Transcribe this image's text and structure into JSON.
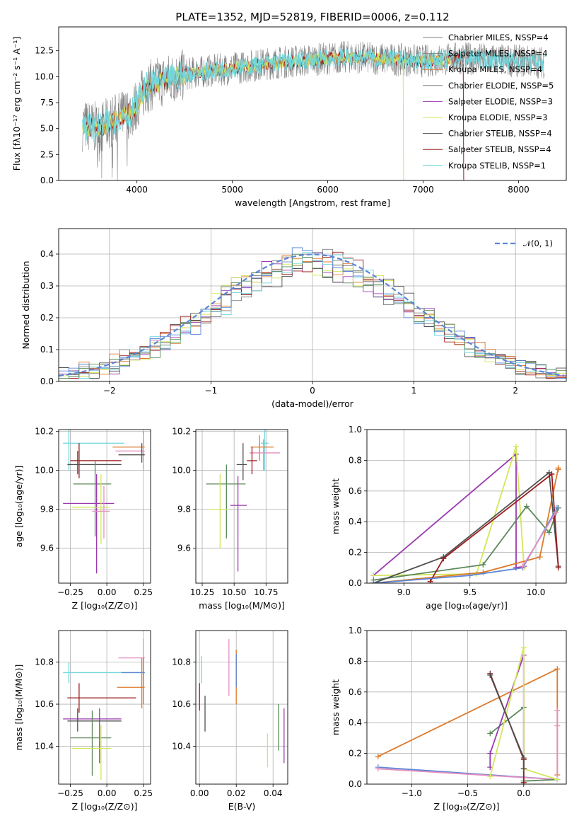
{
  "colors": {
    "gray": "#808080",
    "dgray": "#505050",
    "orange": "#dd7a2b",
    "purple": "#9a3ab0",
    "yellow": "#d4e65a",
    "dred": "#9b1c1c",
    "cyan": "#6fd6dc",
    "blue": "#5b86d6",
    "green": "#5c8a5c",
    "pink": "#e58fc0",
    "violet": "#b040d0"
  },
  "chart_data": [
    {
      "type": "line",
      "title": "PLATE=1352, MJD=52819, FIBERID=0006, z=0.112",
      "xlabel": "wavelength [Angstrom, rest frame]",
      "ylabel": "Flux [fλ10⁻¹⁷ erg cm⁻² s⁻¹ A⁻¹]",
      "xlim": [
        3180,
        8500
      ],
      "ylim": [
        0,
        14.8
      ],
      "xticks": [
        "4000",
        "5000",
        "6000",
        "7000",
        "8000"
      ],
      "yticks": [
        "0.0",
        "2.5",
        "5.0",
        "7.5",
        "10.0",
        "12.5"
      ],
      "grid": false,
      "legend_position": "right",
      "legend": [
        "Chabrier MILES, NSSP=4",
        "Salpeter MILES, NSSP=4",
        "Kroupa MILES, NSSP=4",
        "Chabrier ELODIE, NSSP=5",
        "Salpeter ELODIE, NSSP=3",
        "Kroupa ELODIE, NSSP=3",
        "Chabrier STELIB, NSSP=4",
        "Salpeter STELIB, NSSP=4",
        "Kroupa STELIB, NSSP=1"
      ],
      "legend_colors": [
        "gray",
        "gray",
        "orange",
        "gray",
        "purple",
        "yellow",
        "dgray",
        "dred",
        "cyan"
      ],
      "continuum": {
        "x": [
          3450,
          3600,
          3800,
          3950,
          4100,
          4300,
          4600,
          5000,
          5400,
          5800,
          6200,
          6600,
          7000,
          7400,
          7800,
          8250
        ],
        "y": [
          5.3,
          5.0,
          6.0,
          6.6,
          9.0,
          9.7,
          10.4,
          10.8,
          11.3,
          11.6,
          11.9,
          11.7,
          11.5,
          11.8,
          11.6,
          11.4
        ]
      }
    },
    {
      "type": "bar",
      "xlabel": "(data-model)/error",
      "ylabel": "Normed distribution",
      "xlim": [
        -2.5,
        2.5
      ],
      "ylim": [
        0,
        0.48
      ],
      "xticks": [
        "−2",
        "−1",
        "0",
        "1",
        "2"
      ],
      "yticks": [
        "0.0",
        "0.1",
        "0.2",
        "0.3",
        "0.4"
      ],
      "grid": true,
      "legend_position": "top-right",
      "legend": [
        "𝒩(0, 1)"
      ],
      "series_colors": [
        "gray",
        "orange",
        "purple",
        "yellow",
        "dgray",
        "dred",
        "cyan",
        "blue",
        "green"
      ]
    },
    {
      "type": "scatter",
      "xlabel": "Z [log₁₀(Z/Z⊙)]",
      "ylabel": "age  [log₁₀(age/yr)]",
      "xlim": [
        -0.33,
        0.3
      ],
      "ylim": [
        9.42,
        10.21
      ],
      "xticks": [
        "−0.25",
        "0.00",
        "0.25"
      ],
      "yticks": [
        "9.6",
        "9.8",
        "10.0",
        "10.2"
      ],
      "points": [
        {
          "c": "cyan",
          "x": -0.26,
          "y": 10.14,
          "xe": [
            -0.3,
            0.12
          ],
          "ye": [
            10.0,
            10.21
          ]
        },
        {
          "c": "orange",
          "x": 0.25,
          "y": 10.12,
          "xe": [
            0.04,
            0.26
          ],
          "ye": [
            10.05,
            10.2
          ]
        },
        {
          "c": "pink",
          "x": 0.25,
          "y": 10.1,
          "xe": [
            0.06,
            0.26
          ],
          "ye": [
            10.0,
            10.19
          ]
        },
        {
          "c": "dgray",
          "x": 0.24,
          "y": 10.08,
          "xe": [
            0.08,
            0.26
          ],
          "ye": [
            10.04,
            10.14
          ]
        },
        {
          "c": "dred",
          "x": -0.19,
          "y": 10.05,
          "xe": [
            -0.25,
            0.1
          ],
          "ye": [
            9.96,
            10.14
          ]
        },
        {
          "c": "dgray",
          "x": -0.2,
          "y": 10.03,
          "xe": [
            -0.27,
            0.1
          ],
          "ye": [
            9.98,
            10.1
          ]
        },
        {
          "c": "green",
          "x": -0.08,
          "y": 9.93,
          "xe": [
            -0.23,
            0.03
          ],
          "ye": [
            9.66,
            10.05
          ]
        },
        {
          "c": "purple",
          "x": -0.07,
          "y": 9.83,
          "xe": [
            -0.3,
            0.05
          ],
          "ye": [
            9.47,
            9.98
          ]
        },
        {
          "c": "yellow",
          "x": -0.04,
          "y": 9.81,
          "xe": [
            -0.24,
            0.02
          ],
          "ye": [
            9.62,
            9.98
          ]
        },
        {
          "c": "pink",
          "x": -0.02,
          "y": 9.79,
          "xe": [
            -0.1,
            0.02
          ],
          "ye": [
            9.65,
            9.92
          ]
        }
      ]
    },
    {
      "type": "scatter",
      "xlabel": "mass [log₁₀(M/M⊙)]",
      "ylabel": "",
      "xlim": [
        10.2,
        10.92
      ],
      "ylim": [
        9.42,
        10.21
      ],
      "xticks": [
        "10.25",
        "10.50",
        "10.75"
      ],
      "yticks": [
        "9.6",
        "9.8",
        "10.0",
        "10.2"
      ],
      "points": [
        {
          "c": "cyan",
          "x": 10.74,
          "y": 10.14,
          "xe": [
            10.71,
            10.77
          ],
          "ye": [
            10.0,
            10.21
          ]
        },
        {
          "c": "orange",
          "x": 10.7,
          "y": 10.12,
          "xe": [
            10.63,
            10.81
          ],
          "ye": [
            10.05,
            10.18
          ]
        },
        {
          "c": "pink",
          "x": 10.73,
          "y": 10.09,
          "xe": [
            10.62,
            10.86
          ],
          "ye": [
            10.0,
            10.16
          ]
        },
        {
          "c": "dgray",
          "x": 10.57,
          "y": 10.03,
          "xe": [
            10.52,
            10.6
          ],
          "ye": [
            9.95,
            10.14
          ]
        },
        {
          "c": "dred",
          "x": 10.64,
          "y": 10.05,
          "xe": [
            10.6,
            10.68
          ],
          "ye": [
            9.98,
            10.12
          ]
        },
        {
          "c": "green",
          "x": 10.44,
          "y": 9.93,
          "xe": [
            10.28,
            10.59
          ],
          "ye": [
            9.65,
            10.03
          ]
        },
        {
          "c": "purple",
          "x": 10.53,
          "y": 9.82,
          "xe": [
            10.47,
            10.6
          ],
          "ye": [
            9.48,
            9.97
          ]
        },
        {
          "c": "yellow",
          "x": 10.39,
          "y": 9.8,
          "xe": [
            10.3,
            10.45
          ],
          "ye": [
            9.6,
            9.98
          ]
        }
      ]
    },
    {
      "type": "line",
      "xlabel": "age  [log₁₀(age/yr)]",
      "ylabel": "mass weight",
      "xlim": [
        8.72,
        10.23
      ],
      "ylim": [
        0,
        1
      ],
      "xticks": [
        "9.0",
        "9.5",
        "10.0"
      ],
      "yticks": [
        "0.0",
        "0.2",
        "0.4",
        "0.6",
        "0.8",
        "1.0"
      ],
      "series": [
        {
          "c": "purple",
          "x": [
            8.77,
            9.85,
            9.85,
            9.91
          ],
          "y": [
            0.05,
            0.84,
            0.1,
            0.11
          ]
        },
        {
          "c": "yellow",
          "x": [
            8.77,
            9.55,
            9.85,
            9.91
          ],
          "y": [
            0.05,
            0.06,
            0.89,
            0.1
          ]
        },
        {
          "c": "orange",
          "x": [
            8.77,
            9.6,
            10.03,
            10.17,
            10.17
          ],
          "y": [
            0.0,
            0.07,
            0.17,
            0.75,
            0.74
          ]
        },
        {
          "c": "green",
          "x": [
            8.77,
            9.6,
            9.93,
            10.1,
            10.17
          ],
          "y": [
            0.02,
            0.12,
            0.5,
            0.33,
            0.49
          ]
        },
        {
          "c": "dgray",
          "x": [
            8.77,
            9.3,
            10.1,
            10.17
          ],
          "y": [
            0.0,
            0.17,
            0.72,
            0.11
          ]
        },
        {
          "c": "dred",
          "x": [
            9.2,
            9.3,
            10.12,
            10.17
          ],
          "y": [
            0.01,
            0.16,
            0.71,
            0.1
          ]
        },
        {
          "c": "blue",
          "x": [
            8.77,
            9.5,
            9.9,
            10.16
          ],
          "y": [
            0.0,
            0.05,
            0.1,
            0.49
          ]
        },
        {
          "c": "pink",
          "x": [
            9.9,
            10.15
          ],
          "y": [
            0.11,
            0.46
          ]
        }
      ]
    },
    {
      "type": "scatter",
      "xlabel": "Z [log₁₀(Z/Z⊙)]",
      "ylabel": "mass [log₁₀(M/M⊙)]",
      "xlim": [
        -0.33,
        0.3
      ],
      "ylim": [
        10.22,
        10.95
      ],
      "xticks": [
        "−0.25",
        "0.00",
        "0.25"
      ],
      "yticks": [
        "10.4",
        "10.6",
        "10.8"
      ],
      "points": [
        {
          "c": "cyan",
          "x": -0.26,
          "y": 10.75,
          "xe": [
            -0.3,
            0.26
          ],
          "ye": [
            10.7,
            10.8
          ]
        },
        {
          "c": "pink",
          "x": 0.25,
          "y": 10.82,
          "xe": [
            0.08,
            0.26
          ],
          "ye": [
            10.72,
            10.91
          ]
        },
        {
          "c": "blue",
          "x": 0.25,
          "y": 10.75,
          "xe": [
            0.1,
            0.26
          ],
          "ye": [
            10.6,
            10.82
          ]
        },
        {
          "c": "orange",
          "x": 0.24,
          "y": 10.68,
          "xe": [
            0.07,
            0.26
          ],
          "ye": [
            10.58,
            10.82
          ]
        },
        {
          "c": "dred",
          "x": -0.19,
          "y": 10.63,
          "xe": [
            -0.27,
            0.2
          ],
          "ye": [
            10.56,
            10.7
          ]
        },
        {
          "c": "purple",
          "x": -0.05,
          "y": 10.53,
          "xe": [
            -0.3,
            0.1
          ],
          "ye": [
            10.32,
            10.58
          ]
        },
        {
          "c": "dgray",
          "x": -0.2,
          "y": 10.52,
          "xe": [
            -0.27,
            0.1
          ],
          "ye": [
            10.47,
            10.58
          ]
        },
        {
          "c": "green",
          "x": -0.1,
          "y": 10.44,
          "xe": [
            -0.25,
            0.03
          ],
          "ye": [
            10.26,
            10.57
          ]
        },
        {
          "c": "yellow",
          "x": -0.04,
          "y": 10.39,
          "xe": [
            -0.24,
            0.03
          ],
          "ye": [
            10.24,
            10.5
          ]
        }
      ]
    },
    {
      "type": "scatter",
      "xlabel": "E(B-V)",
      "ylabel": "",
      "xlim": [
        -0.002,
        0.048
      ],
      "ylim": [
        10.22,
        10.95
      ],
      "xticks": [
        "0.00",
        "0.02",
        "0.04"
      ],
      "yticks": [
        "10.4",
        "10.6",
        "10.8"
      ],
      "points": [
        {
          "c": "dred",
          "x": 0.0,
          "ye": [
            10.57,
            10.7
          ]
        },
        {
          "c": "cyan",
          "x": 0.001,
          "ye": [
            10.7,
            10.83
          ]
        },
        {
          "c": "dgray",
          "x": 0.003,
          "ye": [
            10.47,
            10.64
          ]
        },
        {
          "c": "pink",
          "x": 0.016,
          "ye": [
            10.64,
            10.91
          ]
        },
        {
          "c": "orange",
          "x": 0.02,
          "ye": [
            10.6,
            10.86
          ]
        },
        {
          "c": "blue",
          "x": 0.02,
          "ye": [
            10.68,
            10.84
          ]
        },
        {
          "c": "yellow",
          "x": 0.037,
          "ye": [
            10.3,
            10.46
          ]
        },
        {
          "c": "green",
          "x": 0.043,
          "ye": [
            10.38,
            10.6
          ]
        },
        {
          "c": "purple",
          "x": 0.046,
          "ye": [
            10.32,
            10.58
          ]
        }
      ]
    },
    {
      "type": "line",
      "xlabel": "Z [log₁₀(Z/Z⊙)]",
      "ylabel": "mass weight",
      "xlim": [
        -1.4,
        0.38
      ],
      "ylim": [
        0,
        1
      ],
      "xticks": [
        "−1.0",
        "−0.5",
        "0.0"
      ],
      "yticks": [
        "0.0",
        "0.2",
        "0.4",
        "0.6",
        "0.8",
        "1.0"
      ],
      "series": [
        {
          "c": "orange",
          "x": [
            -1.3,
            0.3,
            0.3
          ],
          "y": [
            0.18,
            0.75,
            0.06
          ]
        },
        {
          "c": "blue",
          "x": [
            -1.3,
            0.3
          ],
          "y": [
            0.11,
            0.03
          ]
        },
        {
          "c": "pink",
          "x": [
            -1.3,
            0.3,
            0.3,
            0.3
          ],
          "y": [
            0.1,
            0.03,
            0.48,
            0.38
          ]
        },
        {
          "c": "green",
          "x": [
            -0.3,
            0.0,
            0.0,
            0.3
          ],
          "y": [
            0.33,
            0.5,
            0.02,
            0.03
          ]
        },
        {
          "c": "purple",
          "x": [
            -0.3,
            -0.3,
            0.0,
            0.0
          ],
          "y": [
            0.11,
            0.2,
            0.84,
            0.1
          ]
        },
        {
          "c": "yellow",
          "x": [
            -0.3,
            0.0,
            0.0,
            0.3
          ],
          "y": [
            0.05,
            0.89,
            0.1,
            0.03
          ]
        },
        {
          "c": "dred",
          "x": [
            -0.3,
            0.0,
            0.0
          ],
          "y": [
            0.72,
            0.16,
            0.01
          ]
        },
        {
          "c": "dgray",
          "x": [
            -0.3,
            0.0,
            0.0
          ],
          "y": [
            0.71,
            0.17,
            0.1
          ]
        }
      ]
    }
  ]
}
